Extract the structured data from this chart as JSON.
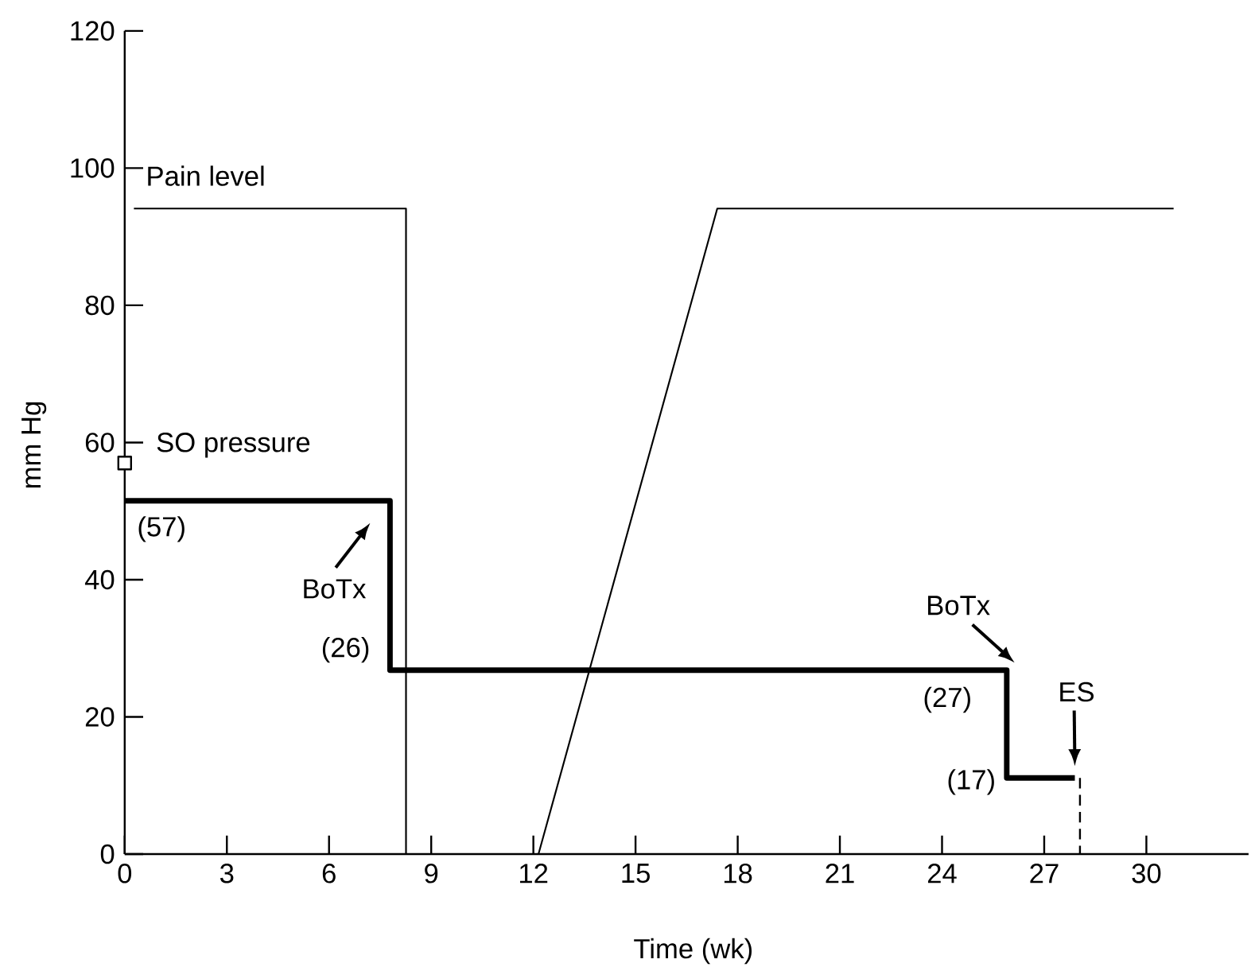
{
  "chart_data": {
    "type": "line",
    "xlabel": "Time (wk)",
    "ylabel": "mm Hg",
    "xlim": [
      0,
      33
    ],
    "ylim": [
      0,
      120
    ],
    "xticks": [
      0,
      3,
      6,
      9,
      12,
      15,
      18,
      21,
      24,
      27,
      30
    ],
    "yticks": [
      0,
      20,
      40,
      60,
      80,
      100,
      120
    ],
    "series": [
      {
        "name": "Pain level",
        "color": "#000000",
        "x": [
          0.27,
          8.26,
          8.26,
          12.15,
          17.4,
          30.8
        ],
        "values": [
          94.1,
          94.1,
          0,
          0,
          94.1,
          94.1
        ]
      },
      {
        "name": "SO pressure",
        "color": "#000000",
        "x": [
          0,
          7.79,
          7.79,
          25.9,
          25.9,
          27.9
        ],
        "values": [
          51.5,
          51.5,
          26.8,
          26.8,
          11.1,
          11.1
        ]
      },
      {
        "type": "scatter",
        "marker": "square",
        "color": "#000000",
        "x": [
          0
        ],
        "values": [
          57
        ]
      },
      {
        "color": "#000000",
        "line_style": "dashed",
        "x": [
          28.05,
          28.05
        ],
        "values": [
          11.1,
          0
        ]
      }
    ],
    "annotations": [
      {
        "text": "(57)",
        "x": 0,
        "y": 51.5
      },
      {
        "text": "BoTx",
        "x": 7.79,
        "y": 51.5
      },
      {
        "text": "(26)",
        "x": 7.79,
        "y": 26.8
      },
      {
        "text": "BoTx",
        "x": 25.9,
        "y": 26.8
      },
      {
        "text": "(27)",
        "x": 25.9,
        "y": 26.8
      },
      {
        "text": "ES",
        "x": 27.9,
        "y": 11.1
      },
      {
        "text": "(17)",
        "x": 25.9,
        "y": 11.1
      }
    ]
  }
}
